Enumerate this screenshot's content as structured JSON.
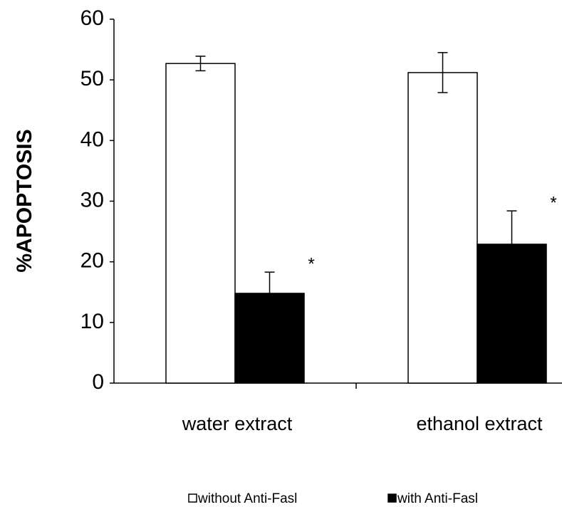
{
  "chart_data": {
    "type": "bar",
    "y_label": "%APOPTOSIS",
    "categories": [
      "water extract",
      "ethanol extract"
    ],
    "series": [
      {
        "name": "without Anti-Fasl",
        "color": "#ffffff",
        "values": [
          52.7,
          51.2
        ],
        "errors": [
          1.2,
          3.3
        ]
      },
      {
        "name": "with Anti-Fasl",
        "color": "#000000",
        "values": [
          14.8,
          22.9
        ],
        "errors": [
          3.5,
          5.5
        ],
        "annotations": [
          "*",
          "*"
        ]
      }
    ],
    "ylim": [
      0,
      60
    ],
    "yticks": [
      0,
      10,
      20,
      30,
      40,
      50,
      60
    ],
    "grid": false,
    "legend": "bottom"
  }
}
